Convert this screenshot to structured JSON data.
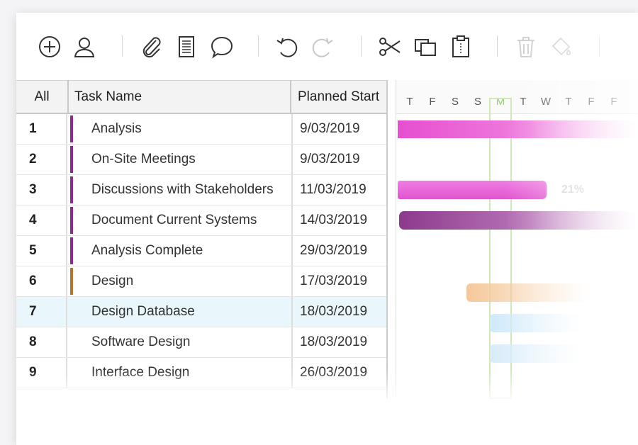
{
  "toolbar": {
    "icons": [
      "add-circle-icon",
      "user-icon",
      "paperclip-icon",
      "notes-icon",
      "comment-icon",
      "undo-icon",
      "redo-icon",
      "scissors-icon",
      "copy-icon",
      "paste-icon",
      "trash-icon",
      "fill-color-icon"
    ]
  },
  "grid": {
    "columns": {
      "all": "All",
      "task_name": "Task Name",
      "planned_start": "Planned Start"
    },
    "rows": [
      {
        "num": "1",
        "name": "Analysis",
        "start": "9/03/2019",
        "color": "#8b2b8d"
      },
      {
        "num": "2",
        "name": "On-Site Meetings",
        "start": "9/03/2019",
        "color": "#8b2b8d"
      },
      {
        "num": "3",
        "name": "Discussions with Stakeholders",
        "start": "11/03/2019",
        "color": "#8b2b8d"
      },
      {
        "num": "4",
        "name": "Document Current Systems",
        "start": "14/03/2019",
        "color": "#8b2b8d"
      },
      {
        "num": "5",
        "name": "Analysis Complete",
        "start": "29/03/2019",
        "color": "#8b2b8d"
      },
      {
        "num": "6",
        "name": "Design",
        "start": "17/03/2019",
        "color": "#b0742c"
      },
      {
        "num": "7",
        "name": "Design Database",
        "start": "18/03/2019",
        "color": "",
        "selected": true
      },
      {
        "num": "8",
        "name": "Software Design",
        "start": "18/03/2019",
        "color": ""
      },
      {
        "num": "9",
        "name": "Interface Design",
        "start": "26/03/2019",
        "color": ""
      }
    ]
  },
  "gantt": {
    "days": [
      "T",
      "F",
      "S",
      "S",
      "M",
      "T",
      "W",
      "T",
      "F",
      "F"
    ],
    "today_label": "M",
    "progress_label": "21%",
    "colors": {
      "pink": "#e64fd0",
      "purple": "#8c3a8c",
      "orange": "#f5c89a",
      "blue": "#cfe9fb",
      "today": "#cfe8b8"
    }
  }
}
